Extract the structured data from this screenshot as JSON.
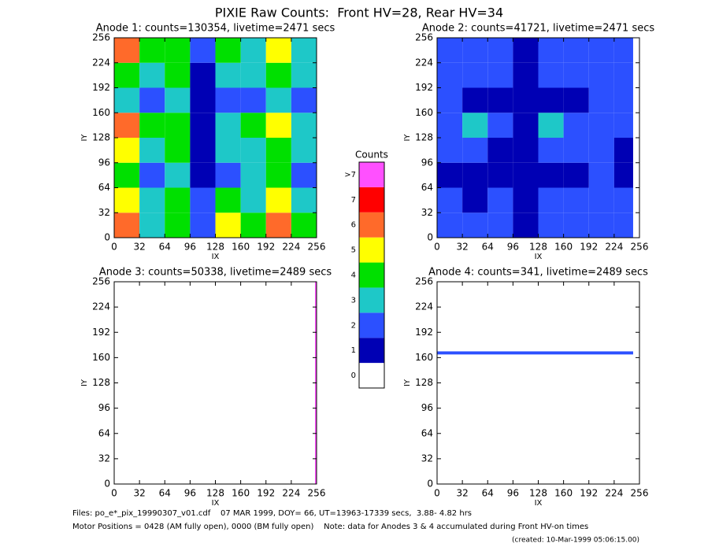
{
  "title": "PIXIE Raw Counts:  Front HV=28, Rear HV=34",
  "colorbar": {
    "title": "Counts",
    "ticks": [
      0,
      1,
      2,
      3,
      4,
      5,
      6,
      7,
      {
        "value": 8,
        "label": ">7"
      }
    ],
    "colors": [
      "#ffffff",
      "#0000b4",
      "#2c50ff",
      "#1ec8c8",
      "#00e000",
      "#ffff00",
      "#ff6a2a",
      "#ff0000",
      "#ff50ff"
    ]
  },
  "chart_data": [
    {
      "type": "heatmap",
      "title": "Anode 1: counts=130354, livetime=2471 secs",
      "xlabel": "IX",
      "ylabel": "IY",
      "xlim": [
        0,
        256
      ],
      "ylim": [
        0,
        256
      ],
      "xticks": [
        0,
        32,
        64,
        96,
        128,
        160,
        192,
        224,
        256
      ],
      "yticks": [
        0,
        32,
        64,
        96,
        128,
        160,
        192,
        224,
        256
      ],
      "xbins": [
        0,
        32,
        64,
        96,
        128,
        160,
        192,
        224,
        256
      ],
      "ybins": [
        0,
        32,
        64,
        96,
        128,
        160,
        192,
        224,
        256
      ],
      "z": [
        [
          6,
          3,
          4,
          2,
          5,
          4,
          6,
          4
        ],
        [
          5,
          3,
          4,
          2,
          4,
          3,
          5,
          3
        ],
        [
          4,
          2,
          3,
          1,
          2,
          3,
          4,
          2
        ],
        [
          5,
          3,
          4,
          1,
          3,
          3,
          4,
          3
        ],
        [
          6,
          4,
          4,
          1,
          3,
          4,
          5,
          3
        ],
        [
          3,
          2,
          3,
          1,
          2,
          2,
          3,
          2
        ],
        [
          4,
          3,
          4,
          1,
          3,
          3,
          4,
          3
        ],
        [
          6,
          4,
          4,
          2,
          4,
          3,
          5,
          3
        ]
      ]
    },
    {
      "type": "heatmap",
      "title": "Anode 2: counts=41721, livetime=2471 secs",
      "xlabel": "IX",
      "ylabel": "IY",
      "xlim": [
        0,
        256
      ],
      "ylim": [
        0,
        256
      ],
      "xticks": [
        0,
        32,
        64,
        96,
        128,
        160,
        192,
        224,
        256
      ],
      "yticks": [
        0,
        32,
        64,
        96,
        128,
        160,
        192,
        224,
        256
      ],
      "xbins": [
        0,
        32,
        64,
        96,
        128,
        160,
        192,
        224,
        248
      ],
      "ybins": [
        0,
        32,
        64,
        96,
        128,
        160,
        192,
        224,
        256
      ],
      "z": [
        [
          2,
          2,
          2,
          1,
          2,
          2,
          2,
          2
        ],
        [
          2,
          1,
          2,
          1,
          2,
          2,
          2,
          2
        ],
        [
          1,
          1,
          1,
          1,
          1,
          1,
          2,
          1
        ],
        [
          2,
          2,
          1,
          1,
          2,
          2,
          2,
          1
        ],
        [
          2,
          3,
          2,
          1,
          3,
          2,
          2,
          2
        ],
        [
          2,
          1,
          1,
          1,
          1,
          1,
          2,
          2
        ],
        [
          2,
          2,
          2,
          1,
          2,
          2,
          2,
          2
        ],
        [
          2,
          2,
          2,
          1,
          2,
          2,
          2,
          2
        ]
      ]
    },
    {
      "type": "heatmap",
      "title": "Anode 3: counts=50338, livetime=2489 secs",
      "xlabel": "IX",
      "ylabel": "IY",
      "xlim": [
        0,
        256
      ],
      "ylim": [
        0,
        256
      ],
      "xticks": [
        0,
        32,
        64,
        96,
        128,
        160,
        192,
        224,
        256
      ],
      "yticks": [
        0,
        32,
        64,
        96,
        128,
        160,
        192,
        224,
        256
      ],
      "xbins": [
        0,
        254,
        256
      ],
      "ybins": [
        0,
        256
      ],
      "z": [
        [
          0,
          8
        ]
      ]
    },
    {
      "type": "heatmap",
      "title": "Anode 4: counts=341, livetime=2489 secs",
      "xlabel": "IX",
      "ylabel": "IY",
      "xlim": [
        0,
        256
      ],
      "ylim": [
        0,
        256
      ],
      "xticks": [
        0,
        32,
        64,
        96,
        128,
        160,
        192,
        224,
        256
      ],
      "yticks": [
        0,
        32,
        64,
        96,
        128,
        160,
        192,
        224,
        256
      ],
      "xbins": [
        0,
        248
      ],
      "ybins": [
        0,
        164,
        168,
        256
      ],
      "z": [
        [
          0
        ],
        [
          2
        ],
        [
          0
        ]
      ]
    }
  ],
  "footer": [
    "Files: po_e*_pix_19990307_v01.cdf    07 MAR 1999, DOY= 66, UT=13963-17339 secs,  3.88- 4.82 hrs",
    "Motor Positions = 0428 (AM fully open), 0000 (BM fully open)    Note: data for Anodes 3 & 4 accumulated during Front HV-on times",
    "(created: 10-Mar-1999 05:06:15.00)"
  ]
}
